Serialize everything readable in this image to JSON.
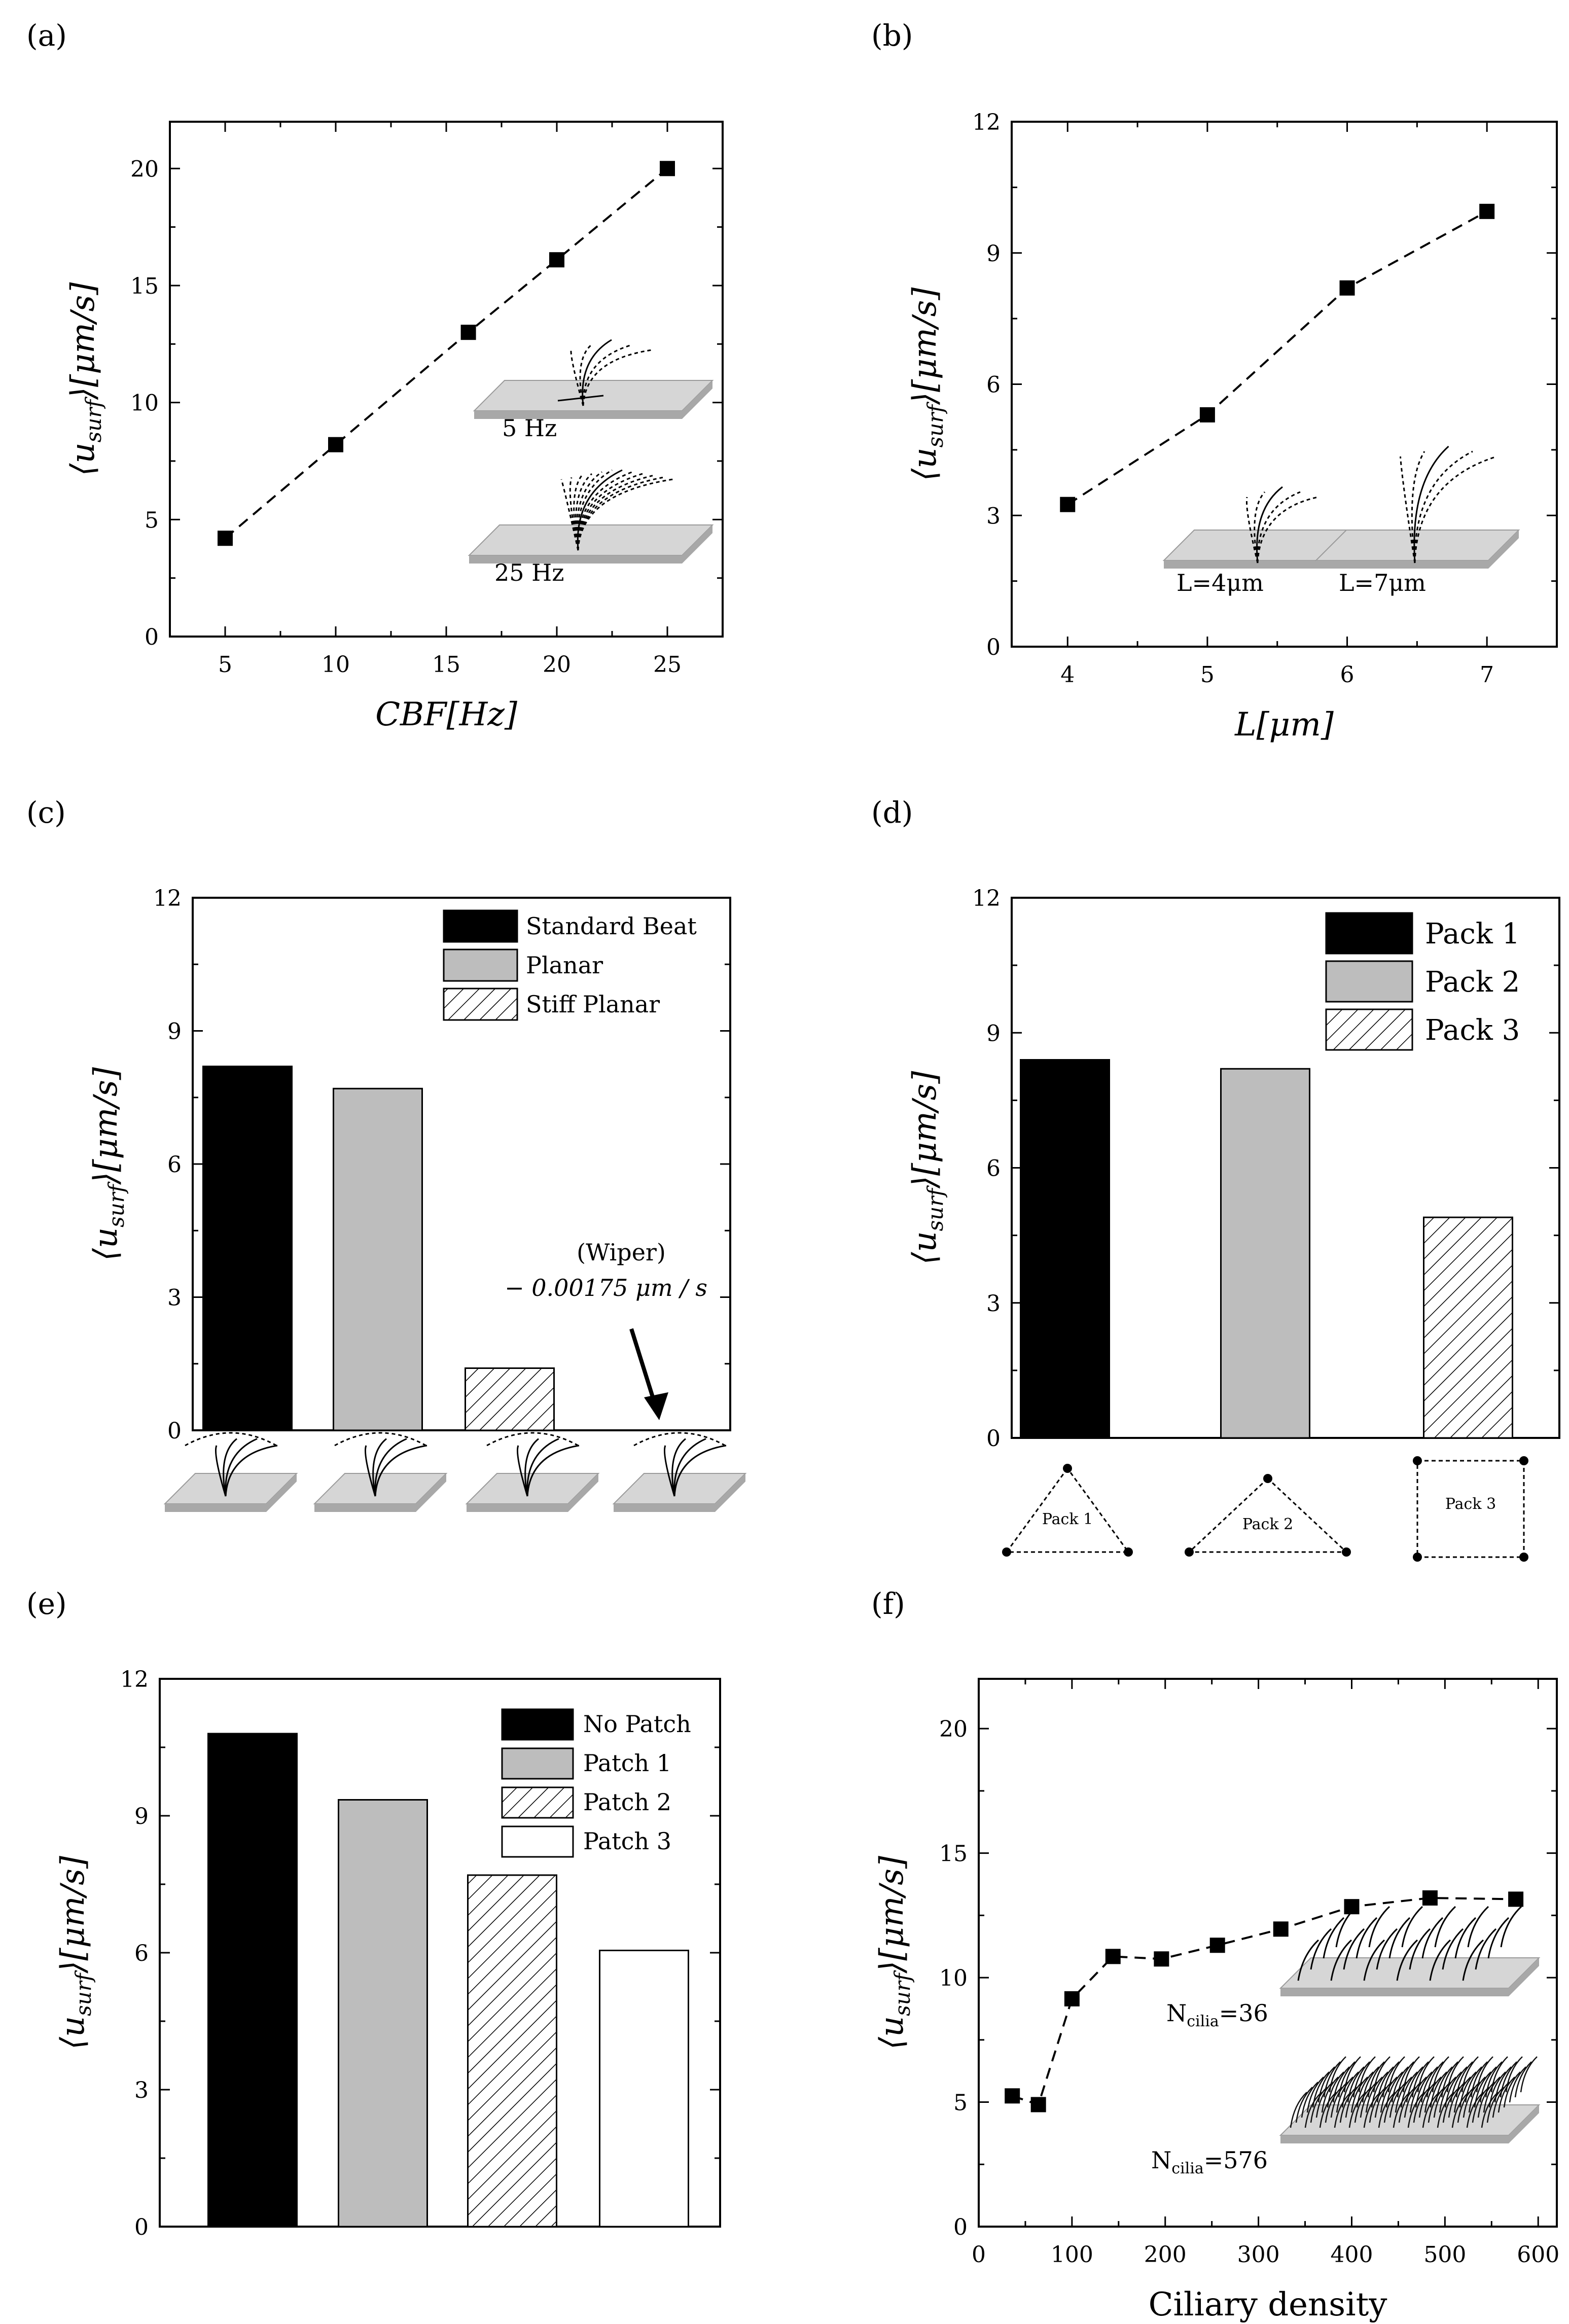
{
  "chart_data": [
    {
      "panel": "(a)",
      "type": "line",
      "x": [
        5,
        10,
        16,
        20,
        25
      ],
      "y": [
        4.2,
        8.2,
        13.0,
        16.1,
        20.0
      ],
      "xlabel": "CBF[Hz]",
      "ylabel": "⟨u_surf⟩[μm/s]",
      "xlim": [
        2.5,
        27.5
      ],
      "ylim": [
        0,
        22
      ],
      "xticks": [
        5,
        10,
        15,
        20,
        25
      ],
      "yticks": [
        0,
        5,
        10,
        15,
        20
      ],
      "line_style": "dashed",
      "marker": "square",
      "insets": [
        "5 Hz",
        "25 Hz"
      ]
    },
    {
      "panel": "(b)",
      "type": "line",
      "x": [
        4,
        5,
        6,
        7
      ],
      "y": [
        3.25,
        5.3,
        8.2,
        9.95
      ],
      "xlabel": "L[μm]",
      "ylabel": "⟨u_surf⟩[μm/s]",
      "xlim": [
        3.6,
        7.5
      ],
      "ylim": [
        0,
        12
      ],
      "xticks": [
        4,
        5,
        6,
        7
      ],
      "yticks": [
        0,
        3,
        6,
        9,
        12
      ],
      "line_style": "dashed",
      "marker": "square",
      "insets": [
        "L=4μm",
        "L=7μm"
      ]
    },
    {
      "panel": "(c)",
      "type": "bar",
      "categories": [
        "Standard Beat",
        "Planar",
        "Stiff Planar",
        "Wiper"
      ],
      "values": [
        8.2,
        7.7,
        1.4,
        -0.00175
      ],
      "ylabel": "⟨u_surf⟩[μm/s]",
      "ylim": [
        0,
        12
      ],
      "yticks": [
        0,
        3,
        6,
        9,
        12
      ],
      "legend": [
        "Standard Beat",
        "Planar",
        "Stiff Planar"
      ],
      "annotation": "(Wiper)",
      "annotation_value": "− 0.00175  μm / s"
    },
    {
      "panel": "(d)",
      "type": "bar",
      "categories": [
        "Pack 1",
        "Pack 2",
        "Pack 3"
      ],
      "values": [
        8.4,
        8.2,
        4.9
      ],
      "ylabel": "⟨u_surf⟩[μm/s]",
      "ylim": [
        0,
        12
      ],
      "yticks": [
        0,
        3,
        6,
        9,
        12
      ],
      "legend": [
        "Pack 1",
        "Pack 2",
        "Pack 3"
      ]
    },
    {
      "panel": "(e)",
      "type": "bar",
      "categories": [
        "No Patch",
        "Patch 1",
        "Patch 2",
        "Patch 3"
      ],
      "values": [
        10.8,
        9.35,
        7.7,
        6.05
      ],
      "ylabel": "⟨u_surf⟩[μm/s]",
      "ylim": [
        0,
        12
      ],
      "yticks": [
        0,
        3,
        6,
        9,
        12
      ],
      "legend": [
        "No Patch",
        "Patch 1",
        "Patch 2",
        "Patch 3"
      ]
    },
    {
      "panel": "(f)",
      "type": "line",
      "x": [
        36,
        64,
        100,
        144,
        196,
        256,
        324,
        400,
        484,
        576
      ],
      "y": [
        5.25,
        4.9,
        9.15,
        10.85,
        10.75,
        11.3,
        11.95,
        12.85,
        13.2,
        13.15
      ],
      "xlabel": "Ciliary density",
      "ylabel": "⟨u_surf⟩[μm/s]",
      "xlim": [
        0,
        620
      ],
      "ylim": [
        0,
        22
      ],
      "xticks": [
        0,
        100,
        200,
        300,
        400,
        500,
        600
      ],
      "yticks": [
        0,
        5,
        10,
        15,
        20
      ],
      "line_style": "dashed",
      "marker": "square",
      "insets": [
        "N_cilia=36",
        "N_cilia=576"
      ]
    }
  ],
  "text": {
    "ylabel_main": "⟨u",
    "ylabel_sub": "surf",
    "ylabel_tail": "⟩[μm/s]",
    "xlabel_a": "CBF[Hz]",
    "xlabel_b": "L[μm]",
    "xlabel_f": "Ciliary density",
    "inset_a1": "5 Hz",
    "inset_a2": "25 Hz",
    "inset_b1": "L=4μm",
    "inset_b2": "L=7μm",
    "inset_f1_main": "N",
    "inset_f1_sub": "cilia",
    "inset_f1_tail": "=36",
    "inset_f2_main": "N",
    "inset_f2_sub": "cilia",
    "inset_f2_tail": "=576",
    "wiper_label": "(Wiper)",
    "wiper_value": "− 0.00175  μm / s",
    "pack1_diagram": "Pack 1",
    "pack2_diagram": "Pack 2",
    "pack3_diagram": "Pack 3"
  },
  "colors": {
    "black_bar": "#000000",
    "gray_bar": "#bdbdbd",
    "white_bar": "#ffffff",
    "plate_top": "#d6d6d6",
    "plate_side": "#a8a8a8",
    "plate_edge": "#8aaac0"
  }
}
